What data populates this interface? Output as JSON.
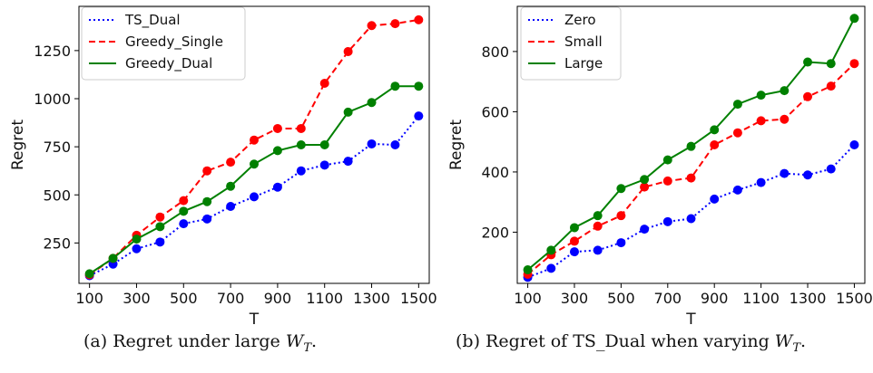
{
  "chart_data": [
    {
      "type": "line",
      "caption_prefix": "(a) Regret under large ",
      "caption_math": "W",
      "caption_sub": "T",
      "caption_suffix": ".",
      "xlabel": "T",
      "ylabel": "Regret",
      "x": [
        100,
        200,
        300,
        400,
        500,
        600,
        700,
        800,
        900,
        1000,
        1100,
        1200,
        1300,
        1400,
        1500
      ],
      "xticks": [
        100,
        300,
        500,
        700,
        900,
        1100,
        1300,
        1500
      ],
      "yticks": [
        250,
        500,
        750,
        1000,
        1250
      ],
      "xlim": [
        55,
        1545
      ],
      "ylim": [
        40,
        1480
      ],
      "legend": "top-left",
      "series": [
        {
          "name": "TS_Dual",
          "color": "#0000ff",
          "style": "dotted",
          "values": [
            80,
            140,
            220,
            255,
            350,
            375,
            440,
            490,
            540,
            625,
            655,
            675,
            765,
            760,
            910
          ]
        },
        {
          "name": "Greedy_Single",
          "color": "#ff0000",
          "style": "dashed",
          "values": [
            85,
            170,
            290,
            385,
            470,
            625,
            670,
            785,
            845,
            845,
            1080,
            1245,
            1380,
            1390,
            1410
          ]
        },
        {
          "name": "Greedy_Dual",
          "color": "#008000",
          "style": "solid",
          "values": [
            90,
            170,
            270,
            335,
            415,
            465,
            545,
            660,
            730,
            760,
            760,
            930,
            980,
            1065,
            1065
          ]
        }
      ]
    },
    {
      "type": "line",
      "caption_prefix": "(b) Regret of TS_Dual when varying ",
      "caption_math": "W",
      "caption_sub": "T",
      "caption_suffix": ".",
      "xlabel": "T",
      "ylabel": "Regret",
      "x": [
        100,
        200,
        300,
        400,
        500,
        600,
        700,
        800,
        900,
        1000,
        1100,
        1200,
        1300,
        1400,
        1500
      ],
      "xticks": [
        100,
        300,
        500,
        700,
        900,
        1100,
        1300,
        1500
      ],
      "yticks": [
        200,
        400,
        600,
        800
      ],
      "xlim": [
        55,
        1545
      ],
      "ylim": [
        30,
        950
      ],
      "legend": "top-left",
      "series": [
        {
          "name": "Zero",
          "color": "#0000ff",
          "style": "dotted",
          "values": [
            50,
            80,
            135,
            140,
            165,
            210,
            235,
            245,
            310,
            340,
            365,
            395,
            390,
            410,
            490
          ]
        },
        {
          "name": "Small",
          "color": "#ff0000",
          "style": "dashed",
          "values": [
            60,
            125,
            170,
            220,
            255,
            350,
            370,
            380,
            490,
            530,
            570,
            575,
            650,
            685,
            760
          ]
        },
        {
          "name": "Large",
          "color": "#008000",
          "style": "solid",
          "values": [
            75,
            140,
            215,
            255,
            345,
            375,
            440,
            485,
            540,
            625,
            655,
            670,
            765,
            760,
            910
          ]
        }
      ]
    }
  ]
}
